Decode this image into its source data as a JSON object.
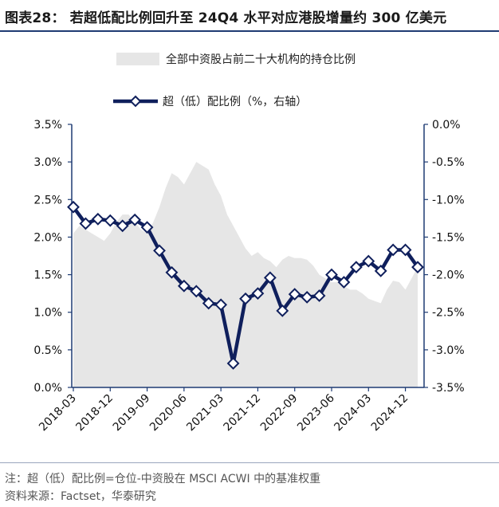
{
  "header": {
    "title": "图表28：  若超低配比例回升至 24Q4 水平对应港股增量约 300 亿美元"
  },
  "footer": {
    "note": "注：超（低）配比例=仓位-中资股在 MSCI ACWI 中的基准权重",
    "source": "资料来源：Factset，华泰研究"
  },
  "colors": {
    "area": "#e6e6e6",
    "line": "#0f1f5c",
    "marker_fill": "#ffffff",
    "axis": "#1f3b73"
  },
  "chart_data": {
    "type": "line",
    "title": "",
    "legend": [
      {
        "name": "全部中资股占前二十大机构的持仓比例",
        "kind": "area",
        "axis": "left"
      },
      {
        "name": "超（低）配比例（%，右轴）",
        "kind": "line",
        "axis": "right"
      }
    ],
    "categories": [
      "2018-03",
      "2018-06",
      "2018-09",
      "2018-12",
      "2019-03",
      "2019-06",
      "2019-09",
      "2019-12",
      "2020-03",
      "2020-06",
      "2020-09",
      "2020-12",
      "2021-03",
      "2021-06",
      "2021-09",
      "2021-12",
      "2022-03",
      "2022-06",
      "2022-09",
      "2022-12",
      "2023-03",
      "2023-06",
      "2023-09",
      "2023-12",
      "2024-03",
      "2024-06",
      "2024-09",
      "2024-12",
      "2025-03"
    ],
    "x_tick_labels": [
      "2018-03",
      "2018-12",
      "2019-09",
      "2020-06",
      "2021-03",
      "2021-12",
      "2022-09",
      "2023-06",
      "2024-03",
      "2024-12"
    ],
    "left_axis": {
      "min": 0,
      "max": 3.5,
      "ticks": [
        "0.0%",
        "0.5%",
        "1.0%",
        "1.5%",
        "2.0%",
        "2.5%",
        "3.0%",
        "3.5%"
      ]
    },
    "right_axis": {
      "min": -3.5,
      "max": 0,
      "ticks": [
        "-3.5%",
        "-3.0%",
        "-2.5%",
        "-2.0%",
        "-1.5%",
        "-1.0%",
        "-0.5%",
        "0.0%"
      ]
    },
    "series": [
      {
        "name": "全部中资股占前二十大机构的持仓比例",
        "axis": "left",
        "x": [
          0,
          0.5,
          1,
          1.5,
          2,
          2.5,
          3,
          3.5,
          4,
          4.5,
          5,
          5.5,
          6,
          6.5,
          7,
          7.5,
          8,
          8.5,
          9,
          9.5,
          10,
          10.5,
          11,
          11.5,
          12,
          12.5,
          13,
          13.5,
          14,
          14.5,
          15,
          15.5,
          16,
          16.5,
          17,
          17.5,
          18,
          18.5,
          19,
          19.5,
          20,
          20.5,
          21,
          21.5,
          22,
          22.5,
          23,
          23.5,
          24,
          24.5,
          25,
          25.5,
          26,
          26.5,
          27,
          27.5,
          28
        ],
        "values": [
          2.05,
          2.15,
          2.1,
          2.05,
          2.0,
          1.95,
          2.05,
          2.2,
          2.3,
          2.3,
          2.2,
          2.1,
          2.05,
          2.2,
          2.4,
          2.65,
          2.85,
          2.8,
          2.7,
          2.85,
          3.0,
          2.95,
          2.9,
          2.7,
          2.55,
          2.3,
          2.15,
          2.0,
          1.85,
          1.75,
          1.8,
          1.72,
          1.68,
          1.6,
          1.7,
          1.75,
          1.72,
          1.72,
          1.7,
          1.62,
          1.5,
          1.45,
          1.4,
          1.4,
          1.35,
          1.3,
          1.3,
          1.25,
          1.18,
          1.15,
          1.12,
          1.3,
          1.42,
          1.4,
          1.3,
          1.45,
          1.6
        ]
      },
      {
        "name": "超（低）配比例（%，右轴）",
        "axis": "right",
        "values": [
          -1.1,
          -1.32,
          -1.26,
          -1.28,
          -1.35,
          -1.27,
          -1.37,
          -1.68,
          -1.97,
          -2.15,
          -2.22,
          -2.38,
          -2.4,
          -3.18,
          -2.32,
          -2.25,
          -2.04,
          -2.48,
          -2.26,
          -2.3,
          -2.28,
          -2.0,
          -2.1,
          -1.9,
          -1.82,
          -1.95,
          -1.67,
          -1.67,
          -1.9
        ]
      }
    ]
  }
}
